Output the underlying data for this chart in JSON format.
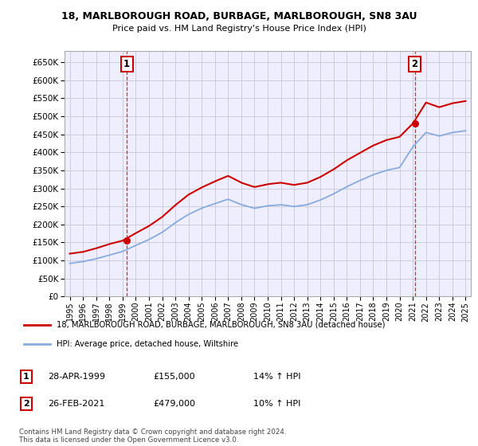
{
  "title_line1": "18, MARLBOROUGH ROAD, BURBAGE, MARLBOROUGH, SN8 3AU",
  "title_line2": "Price paid vs. HM Land Registry's House Price Index (HPI)",
  "legend_label_red": "18, MARLBOROUGH ROAD, BURBAGE, MARLBOROUGH, SN8 3AU (detached house)",
  "legend_label_blue": "HPI: Average price, detached house, Wiltshire",
  "annotation1_date": "28-APR-1999",
  "annotation1_price": "£155,000",
  "annotation1_hpi": "14% ↑ HPI",
  "annotation2_date": "26-FEB-2021",
  "annotation2_price": "£479,000",
  "annotation2_hpi": "10% ↑ HPI",
  "footnote": "Contains HM Land Registry data © Crown copyright and database right 2024.\nThis data is licensed under the Open Government Licence v3.0.",
  "ylim": [
    0,
    680000
  ],
  "yticks": [
    0,
    50000,
    100000,
    150000,
    200000,
    250000,
    300000,
    350000,
    400000,
    450000,
    500000,
    550000,
    600000,
    650000
  ],
  "red_color": "#cc0000",
  "blue_color": "#88aadd",
  "bg_color": "#ffffff",
  "plot_bg_color": "#eeeeff",
  "grid_color": "#ccccdd",
  "purchase1_year": 1999.32,
  "purchase1_value": 155000,
  "purchase2_year": 2021.15,
  "purchase2_value": 479000,
  "hpi_years": [
    1995,
    1996,
    1997,
    1998,
    1999,
    2000,
    2001,
    2002,
    2003,
    2004,
    2005,
    2006,
    2007,
    2008,
    2009,
    2010,
    2011,
    2012,
    2013,
    2014,
    2015,
    2016,
    2017,
    2018,
    2019,
    2020,
    2021,
    2022,
    2023,
    2024,
    2025
  ],
  "hpi_values": [
    92000,
    97000,
    105000,
    115000,
    125000,
    142000,
    158000,
    178000,
    205000,
    228000,
    245000,
    258000,
    270000,
    255000,
    245000,
    252000,
    255000,
    250000,
    255000,
    268000,
    285000,
    305000,
    322000,
    338000,
    350000,
    358000,
    415000,
    455000,
    445000,
    455000,
    460000
  ],
  "red_values": [
    119000,
    124000,
    134000,
    146000,
    155000,
    176000,
    196000,
    221000,
    254000,
    283000,
    303000,
    320000,
    335000,
    316000,
    304000,
    312000,
    316000,
    310000,
    316000,
    332000,
    353000,
    378000,
    399000,
    419000,
    434000,
    443000,
    479000,
    538000,
    525000,
    536000,
    542000
  ]
}
